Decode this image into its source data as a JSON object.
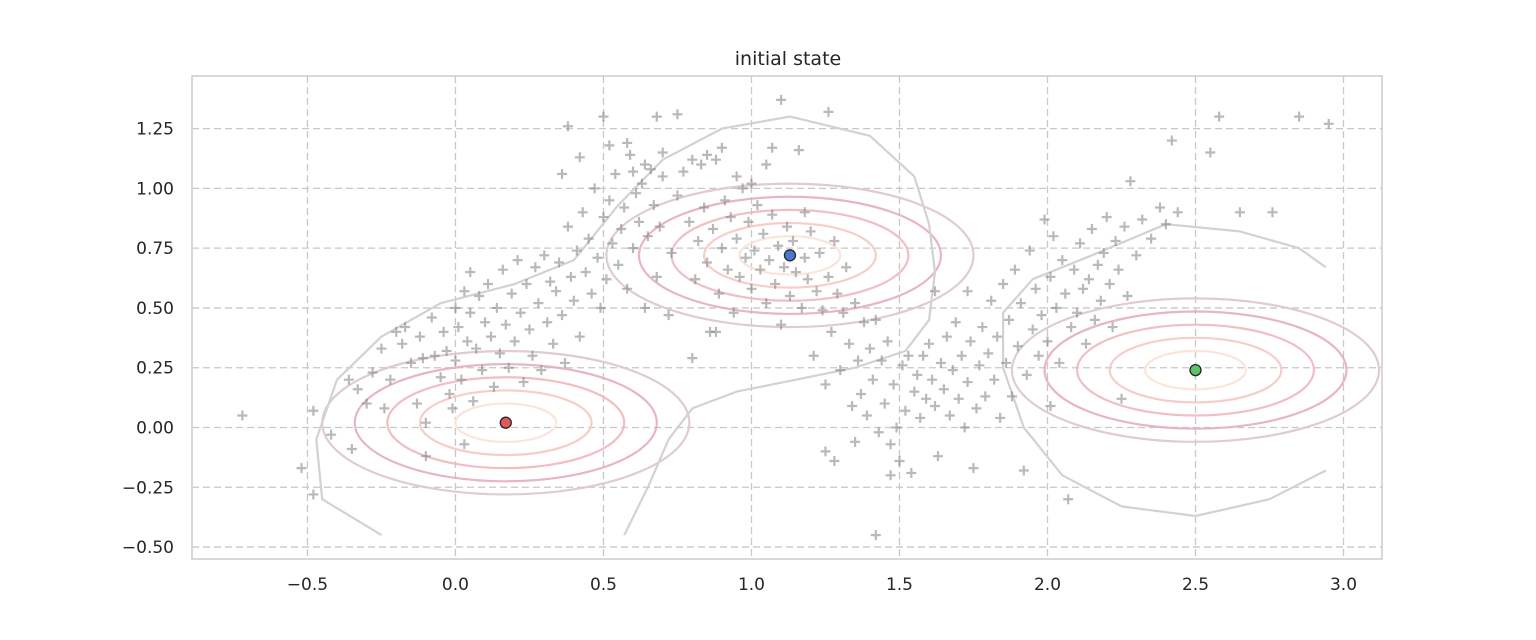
{
  "chart_data": {
    "type": "scatter",
    "title": "initial state",
    "xlabel": "",
    "ylabel": "",
    "xlim": [
      -0.89,
      3.13
    ],
    "ylim": [
      -0.55,
      1.47
    ],
    "xticks": [
      -0.5,
      0.0,
      0.5,
      1.0,
      1.5,
      2.0,
      2.5,
      3.0
    ],
    "xtick_labels": [
      "−0.5",
      "0.0",
      "0.5",
      "1.0",
      "1.5",
      "2.0",
      "2.5",
      "3.0"
    ],
    "yticks": [
      -0.5,
      -0.25,
      0.0,
      0.25,
      0.5,
      0.75,
      1.0,
      1.25
    ],
    "ytick_labels": [
      "−0.50",
      "−0.25",
      "0.00",
      "0.25",
      "0.50",
      "0.75",
      "1.00",
      "1.25"
    ],
    "grid": true,
    "grid_style": "dashed",
    "marker_color": "#808080",
    "centers": [
      {
        "x": 0.17,
        "y": 0.02,
        "color": "#e05a5a"
      },
      {
        "x": 1.13,
        "y": 0.72,
        "color": "#4a78d0"
      },
      {
        "x": 2.5,
        "y": 0.24,
        "color": "#5cc466"
      }
    ],
    "contour_colors": [
      "#fbe2d7",
      "#f6c8c2",
      "#efb7bd",
      "#e6adbb",
      "#dcc6ce",
      "#d2d2d4"
    ],
    "points": [
      [
        -0.72,
        0.05
      ],
      [
        -0.52,
        -0.17
      ],
      [
        -0.48,
        -0.28
      ],
      [
        -0.48,
        0.07
      ],
      [
        -0.42,
        -0.03
      ],
      [
        -0.36,
        0.2
      ],
      [
        -0.35,
        -0.09
      ],
      [
        -0.33,
        0.16
      ],
      [
        -0.3,
        0.1
      ],
      [
        -0.28,
        0.23
      ],
      [
        -0.25,
        0.33
      ],
      [
        -0.24,
        0.08
      ],
      [
        -0.22,
        0.2
      ],
      [
        -0.2,
        0.4
      ],
      [
        -0.18,
        0.35
      ],
      [
        -0.17,
        0.42
      ],
      [
        -0.15,
        0.27
      ],
      [
        -0.13,
        0.1
      ],
      [
        -0.12,
        0.38
      ],
      [
        -0.11,
        0.29
      ],
      [
        -0.1,
        0.02
      ],
      [
        -0.1,
        -0.12
      ],
      [
        -0.08,
        0.46
      ],
      [
        -0.07,
        0.3
      ],
      [
        -0.05,
        0.21
      ],
      [
        -0.04,
        0.4
      ],
      [
        -0.03,
        0.32
      ],
      [
        -0.02,
        0.14
      ],
      [
        -0.01,
        0.08
      ],
      [
        0.0,
        0.5
      ],
      [
        0.0,
        0.28
      ],
      [
        0.01,
        0.42
      ],
      [
        0.02,
        0.2
      ],
      [
        0.03,
        0.57
      ],
      [
        0.03,
        -0.07
      ],
      [
        0.04,
        0.36
      ],
      [
        0.05,
        0.48
      ],
      [
        0.05,
        0.65
      ],
      [
        0.06,
        0.11
      ],
      [
        0.07,
        0.33
      ],
      [
        0.08,
        0.55
      ],
      [
        0.09,
        0.24
      ],
      [
        0.1,
        0.44
      ],
      [
        0.11,
        0.6
      ],
      [
        0.12,
        0.38
      ],
      [
        0.13,
        0.17
      ],
      [
        0.14,
        0.5
      ],
      [
        0.15,
        0.31
      ],
      [
        0.16,
        0.66
      ],
      [
        0.17,
        0.43
      ],
      [
        0.18,
        0.25
      ],
      [
        0.19,
        0.56
      ],
      [
        0.2,
        0.36
      ],
      [
        0.21,
        0.7
      ],
      [
        0.22,
        0.48
      ],
      [
        0.23,
        0.19
      ],
      [
        0.24,
        0.6
      ],
      [
        0.25,
        0.41
      ],
      [
        0.26,
        0.3
      ],
      [
        0.27,
        0.67
      ],
      [
        0.28,
        0.52
      ],
      [
        0.29,
        0.24
      ],
      [
        0.3,
        0.72
      ],
      [
        0.31,
        0.44
      ],
      [
        0.32,
        0.61
      ],
      [
        0.33,
        0.35
      ],
      [
        0.34,
        0.57
      ],
      [
        0.35,
        0.69
      ],
      [
        0.36,
        0.47
      ],
      [
        0.37,
        0.27
      ],
      [
        0.38,
        0.84
      ],
      [
        0.39,
        0.63
      ],
      [
        0.4,
        0.53
      ],
      [
        0.41,
        0.74
      ],
      [
        0.42,
        0.38
      ],
      [
        0.43,
        0.9
      ],
      [
        0.44,
        0.65
      ],
      [
        0.45,
        0.79
      ],
      [
        0.46,
        0.56
      ],
      [
        0.47,
        1.0
      ],
      [
        0.48,
        0.71
      ],
      [
        0.49,
        0.5
      ],
      [
        0.5,
        0.88
      ],
      [
        0.51,
        0.62
      ],
      [
        0.52,
        0.95
      ],
      [
        0.53,
        0.77
      ],
      [
        0.54,
        1.06
      ],
      [
        0.55,
        0.68
      ],
      [
        0.56,
        0.83
      ],
      [
        0.57,
        0.92
      ],
      [
        0.58,
        0.58
      ],
      [
        0.59,
        1.14
      ],
      [
        0.6,
        0.75
      ],
      [
        0.61,
        0.98
      ],
      [
        0.62,
        0.86
      ],
      [
        0.63,
        1.02
      ],
      [
        0.64,
        0.5
      ],
      [
        0.65,
        0.8
      ],
      [
        0.66,
        1.08
      ],
      [
        0.67,
        0.93
      ],
      [
        0.68,
        0.63
      ],
      [
        0.69,
        0.84
      ],
      [
        0.7,
        1.05
      ],
      [
        0.72,
        0.47
      ],
      [
        0.73,
        0.73
      ],
      [
        0.75,
        0.97
      ],
      [
        0.77,
        1.07
      ],
      [
        0.79,
        0.86
      ],
      [
        0.8,
        0.29
      ],
      [
        0.81,
        0.62
      ],
      [
        0.82,
        0.78
      ],
      [
        0.83,
        1.1
      ],
      [
        0.84,
        0.92
      ],
      [
        0.85,
        0.69
      ],
      [
        0.86,
        0.4
      ],
      [
        0.87,
        0.83
      ],
      [
        0.88,
        1.12
      ],
      [
        0.89,
        0.56
      ],
      [
        0.9,
        0.75
      ],
      [
        0.91,
        0.95
      ],
      [
        0.92,
        0.66
      ],
      [
        0.93,
        0.88
      ],
      [
        0.94,
        0.48
      ],
      [
        0.95,
        0.79
      ],
      [
        0.96,
        0.63
      ],
      [
        0.97,
        1.0
      ],
      [
        0.98,
        0.71
      ],
      [
        0.99,
        0.86
      ],
      [
        1.0,
        0.58
      ],
      [
        1.01,
        0.74
      ],
      [
        1.02,
        0.93
      ],
      [
        1.03,
        0.66
      ],
      [
        1.04,
        0.81
      ],
      [
        1.05,
        0.52
      ],
      [
        1.06,
        0.7
      ],
      [
        1.07,
        0.89
      ],
      [
        1.08,
        0.6
      ],
      [
        1.09,
        0.76
      ],
      [
        1.1,
        0.43
      ],
      [
        1.11,
        0.67
      ],
      [
        1.12,
        0.84
      ],
      [
        1.13,
        0.55
      ],
      [
        1.14,
        0.78
      ],
      [
        1.15,
        0.65
      ],
      [
        1.16,
        1.16
      ],
      [
        1.17,
        0.5
      ],
      [
        1.18,
        0.71
      ],
      [
        1.19,
        0.62
      ],
      [
        1.2,
        0.82
      ],
      [
        1.21,
        0.3
      ],
      [
        1.22,
        0.57
      ],
      [
        1.23,
        0.73
      ],
      [
        1.24,
        0.49
      ],
      [
        1.25,
        0.18
      ],
      [
        1.26,
        0.63
      ],
      [
        1.27,
        0.4
      ],
      [
        1.28,
        0.78
      ],
      [
        1.29,
        0.56
      ],
      [
        1.3,
        0.24
      ],
      [
        1.31,
        0.48
      ],
      [
        1.32,
        0.67
      ],
      [
        1.33,
        0.35
      ],
      [
        1.34,
        0.09
      ],
      [
        1.35,
        0.52
      ],
      [
        1.36,
        0.28
      ],
      [
        1.37,
        0.14
      ],
      [
        1.38,
        0.44
      ],
      [
        1.39,
        0.05
      ],
      [
        1.4,
        0.33
      ],
      [
        1.41,
        0.2
      ],
      [
        1.42,
        0.45
      ],
      [
        1.43,
        -0.02
      ],
      [
        1.44,
        0.28
      ],
      [
        1.45,
        0.1
      ],
      [
        1.46,
        0.36
      ],
      [
        1.47,
        -0.07
      ],
      [
        1.48,
        0.18
      ],
      [
        1.49,
        0.0
      ],
      [
        1.5,
        -0.14
      ],
      [
        1.51,
        0.26
      ],
      [
        1.52,
        0.07
      ],
      [
        1.53,
        0.3
      ],
      [
        1.54,
        -0.19
      ],
      [
        1.55,
        0.15
      ],
      [
        1.56,
        0.22
      ],
      [
        1.57,
        0.04
      ],
      [
        1.58,
        0.3
      ],
      [
        1.59,
        0.12
      ],
      [
        1.6,
        0.35
      ],
      [
        1.61,
        0.2
      ],
      [
        1.62,
        0.09
      ],
      [
        1.63,
        -0.12
      ],
      [
        1.64,
        0.27
      ],
      [
        1.65,
        0.16
      ],
      [
        1.66,
        0.38
      ],
      [
        1.67,
        0.05
      ],
      [
        1.68,
        0.24
      ],
      [
        1.69,
        0.44
      ],
      [
        1.7,
        0.12
      ],
      [
        1.71,
        0.3
      ],
      [
        1.72,
        0.0
      ],
      [
        1.73,
        0.19
      ],
      [
        1.74,
        0.36
      ],
      [
        1.75,
        -0.17
      ],
      [
        1.76,
        0.08
      ],
      [
        1.77,
        0.26
      ],
      [
        1.78,
        0.42
      ],
      [
        1.79,
        0.13
      ],
      [
        1.8,
        0.31
      ],
      [
        1.81,
        0.53
      ],
      [
        1.82,
        0.2
      ],
      [
        1.83,
        0.38
      ],
      [
        1.84,
        0.04
      ],
      [
        1.85,
        0.6
      ],
      [
        1.86,
        0.27
      ],
      [
        1.87,
        0.45
      ],
      [
        1.88,
        0.13
      ],
      [
        1.89,
        0.66
      ],
      [
        1.9,
        0.34
      ],
      [
        1.91,
        0.52
      ],
      [
        1.92,
        -0.18
      ],
      [
        1.93,
        0.22
      ],
      [
        1.94,
        0.74
      ],
      [
        1.95,
        0.41
      ],
      [
        1.96,
        0.58
      ],
      [
        1.97,
        0.3
      ],
      [
        1.98,
        0.47
      ],
      [
        1.99,
        0.87
      ],
      [
        2.0,
        0.36
      ],
      [
        2.01,
        0.63
      ],
      [
        2.02,
        0.8
      ],
      [
        2.03,
        0.5
      ],
      [
        2.04,
        0.27
      ],
      [
        2.05,
        0.7
      ],
      [
        2.06,
        0.56
      ],
      [
        2.07,
        -0.3
      ],
      [
        2.08,
        0.42
      ],
      [
        2.09,
        0.66
      ],
      [
        2.1,
        0.48
      ],
      [
        2.11,
        0.77
      ],
      [
        2.12,
        0.58
      ],
      [
        2.13,
        0.35
      ],
      [
        2.14,
        0.62
      ],
      [
        2.15,
        0.83
      ],
      [
        2.16,
        0.45
      ],
      [
        2.17,
        0.68
      ],
      [
        2.18,
        0.53
      ],
      [
        2.19,
        0.73
      ],
      [
        2.2,
        0.88
      ],
      [
        2.21,
        0.6
      ],
      [
        2.22,
        0.42
      ],
      [
        2.23,
        0.78
      ],
      [
        2.24,
        0.66
      ],
      [
        2.25,
        0.12
      ],
      [
        2.26,
        0.84
      ],
      [
        2.27,
        0.55
      ],
      [
        2.28,
        1.03
      ],
      [
        2.3,
        0.72
      ],
      [
        2.32,
        0.87
      ],
      [
        2.35,
        0.79
      ],
      [
        2.38,
        0.92
      ],
      [
        2.4,
        0.85
      ],
      [
        2.42,
        1.2
      ],
      [
        2.44,
        0.9
      ],
      [
        2.55,
        1.15
      ],
      [
        2.58,
        1.3
      ],
      [
        2.65,
        0.9
      ],
      [
        2.76,
        0.9
      ],
      [
        2.85,
        1.3
      ],
      [
        2.95,
        1.27
      ],
      [
        1.07,
        1.17
      ],
      [
        1.1,
        1.37
      ],
      [
        1.26,
        1.32
      ],
      [
        0.88,
        0.4
      ],
      [
        0.75,
        1.31
      ],
      [
        0.68,
        1.3
      ],
      [
        0.5,
        1.3
      ],
      [
        0.38,
        1.26
      ],
      [
        0.42,
        1.13
      ],
      [
        0.36,
        1.06
      ],
      [
        0.52,
        1.18
      ],
      [
        0.58,
        1.19
      ],
      [
        0.6,
        1.07
      ],
      [
        0.64,
        1.1
      ],
      [
        0.7,
        1.15
      ],
      [
        0.8,
        1.12
      ],
      [
        0.85,
        1.14
      ],
      [
        0.9,
        1.17
      ],
      [
        0.95,
        1.05
      ],
      [
        1.0,
        1.02
      ],
      [
        1.05,
        1.1
      ],
      [
        1.18,
        0.9
      ],
      [
        1.42,
        -0.45
      ],
      [
        1.62,
        0.57
      ],
      [
        1.73,
        0.57
      ],
      [
        2.01,
        0.09
      ],
      [
        1.25,
        -0.1
      ],
      [
        1.28,
        -0.14
      ],
      [
        1.35,
        -0.06
      ],
      [
        1.47,
        -0.2
      ]
    ]
  }
}
